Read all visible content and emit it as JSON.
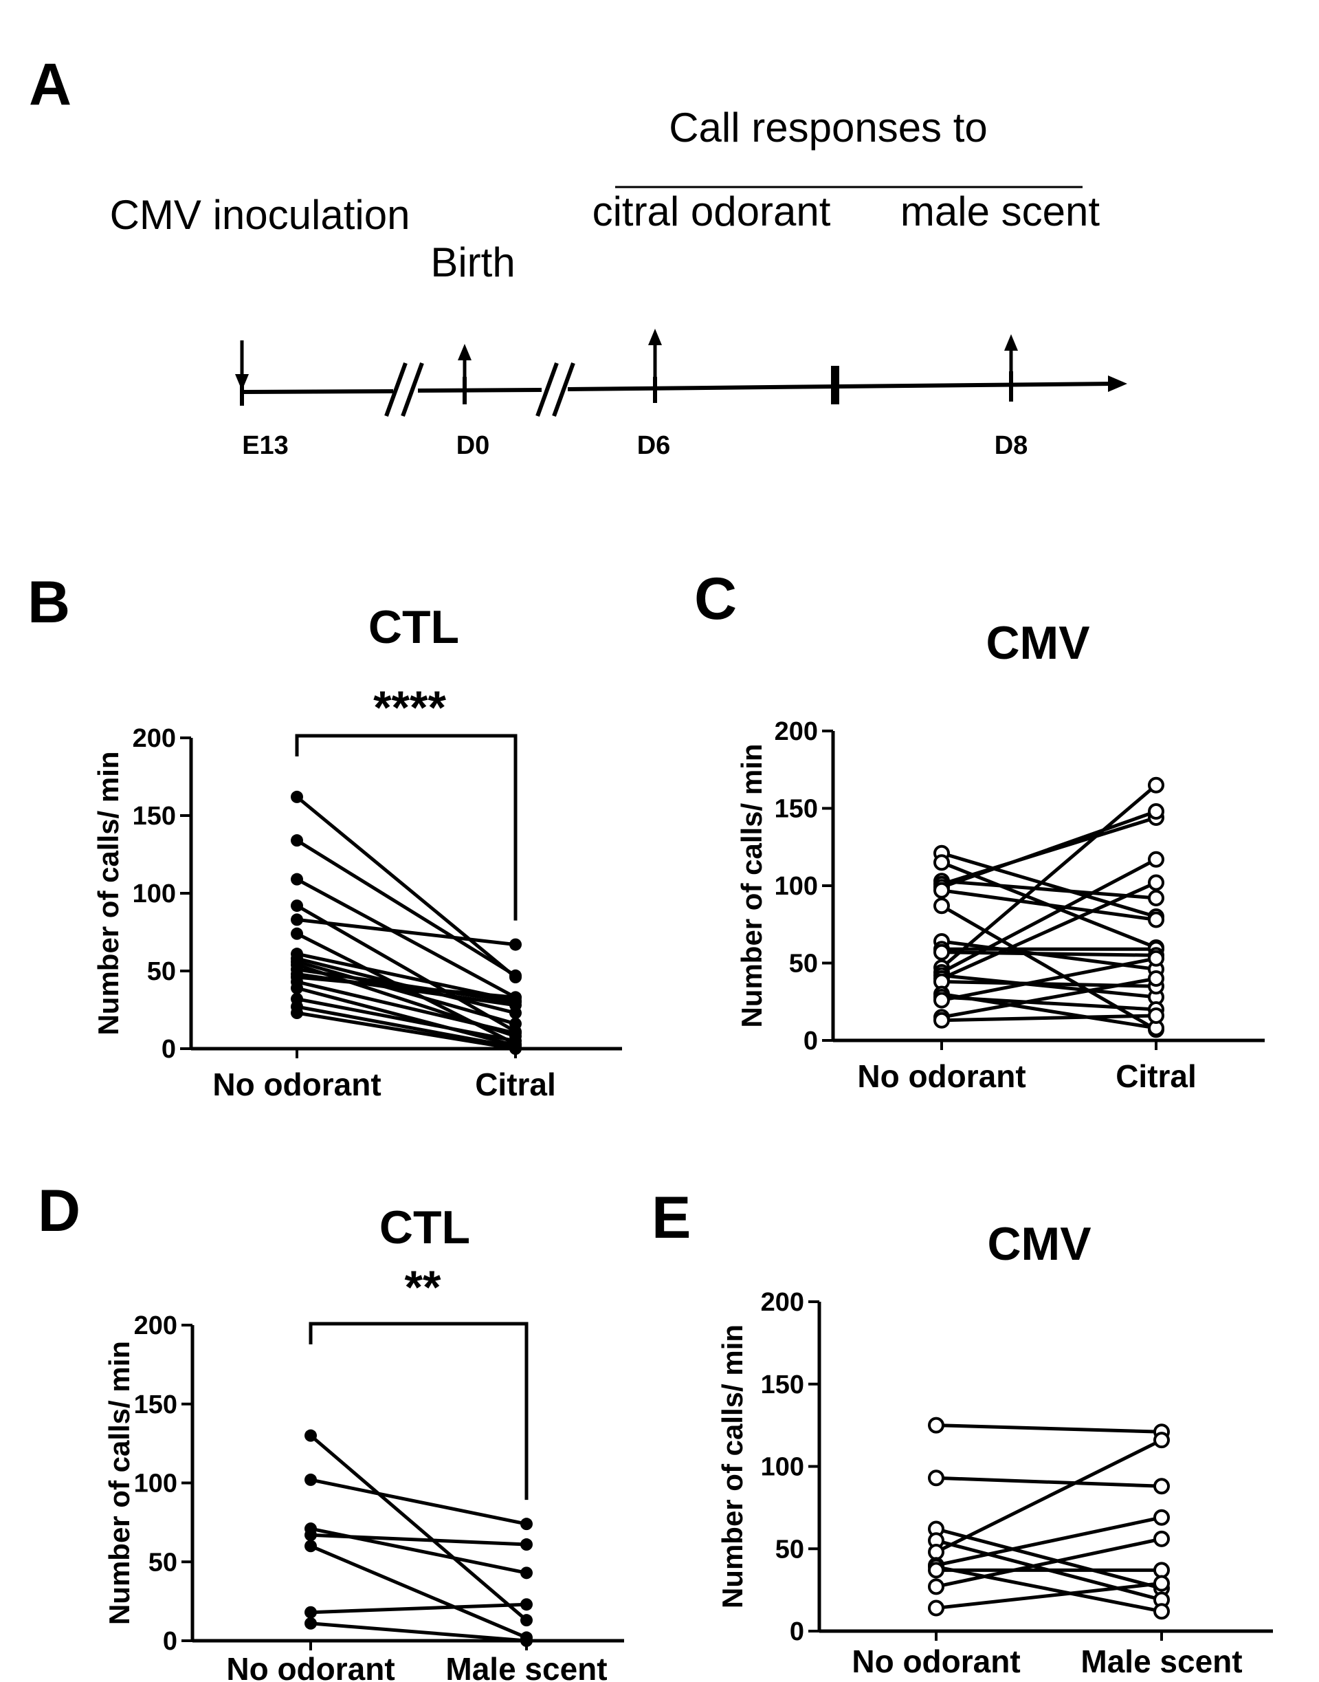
{
  "panel_a": {
    "letter": "A",
    "header": "Call responses to",
    "sub_left": "citral odorant",
    "sub_right": "male scent",
    "cmv": "CMV inoculation",
    "birth": "Birth",
    "ticks": [
      "E13",
      "D0",
      "D6",
      "D8"
    ]
  },
  "chart_data": [
    {
      "letter": "B",
      "type": "line",
      "title": "CTL",
      "ylabel": "Number of calls/ min",
      "ylim": [
        0,
        200
      ],
      "yticks": [
        0,
        50,
        100,
        150,
        200
      ],
      "categories": [
        "No odorant",
        "Citral"
      ],
      "marker": "filled",
      "significance": "****",
      "pairs": [
        [
          162,
          46
        ],
        [
          134,
          47
        ],
        [
          109,
          33
        ],
        [
          92,
          11
        ],
        [
          83,
          67
        ],
        [
          74,
          3
        ],
        [
          61,
          31
        ],
        [
          58,
          23
        ],
        [
          56,
          16
        ],
        [
          54,
          8
        ],
        [
          51,
          30
        ],
        [
          48,
          28
        ],
        [
          46,
          33
        ],
        [
          43,
          10
        ],
        [
          39,
          2
        ],
        [
          32,
          5
        ],
        [
          27,
          1
        ],
        [
          23,
          0
        ]
      ]
    },
    {
      "letter": "C",
      "type": "line",
      "title": "CMV",
      "ylabel": "Number of calls/ min",
      "ylim": [
        0,
        200
      ],
      "yticks": [
        0,
        50,
        100,
        150,
        200
      ],
      "categories": [
        "No odorant",
        "Citral"
      ],
      "marker": "open",
      "significance": "",
      "pairs": [
        [
          121,
          80
        ],
        [
          115,
          60
        ],
        [
          103,
          92
        ],
        [
          101,
          144
        ],
        [
          99,
          148
        ],
        [
          97,
          78
        ],
        [
          87,
          7
        ],
        [
          64,
          46
        ],
        [
          59,
          59
        ],
        [
          57,
          55
        ],
        [
          47,
          165
        ],
        [
          44,
          117
        ],
        [
          42,
          28
        ],
        [
          40,
          102
        ],
        [
          38,
          35
        ],
        [
          30,
          8
        ],
        [
          28,
          20
        ],
        [
          26,
          53
        ],
        [
          15,
          40
        ],
        [
          13,
          16
        ]
      ]
    },
    {
      "letter": "D",
      "type": "line",
      "title": "CTL",
      "ylabel": "Number of calls/ min",
      "ylim": [
        0,
        200
      ],
      "yticks": [
        0,
        50,
        100,
        150,
        200
      ],
      "categories": [
        "No odorant",
        "Male scent"
      ],
      "marker": "filled",
      "significance": "**",
      "pairs": [
        [
          130,
          13
        ],
        [
          102,
          74
        ],
        [
          71,
          43
        ],
        [
          67,
          61
        ],
        [
          60,
          2
        ],
        [
          18,
          23
        ],
        [
          11,
          0
        ]
      ]
    },
    {
      "letter": "E",
      "type": "line",
      "title": "CMV",
      "ylabel": "Number of calls/ min",
      "ylim": [
        0,
        200
      ],
      "yticks": [
        0,
        50,
        100,
        150,
        200
      ],
      "categories": [
        "No odorant",
        "Male scent"
      ],
      "marker": "open",
      "significance": "",
      "pairs": [
        [
          125,
          121
        ],
        [
          93,
          88
        ],
        [
          62,
          26
        ],
        [
          55,
          19
        ],
        [
          48,
          116
        ],
        [
          40,
          69
        ],
        [
          39,
          12
        ],
        [
          37,
          37
        ],
        [
          27,
          56
        ],
        [
          14,
          29
        ]
      ]
    }
  ]
}
